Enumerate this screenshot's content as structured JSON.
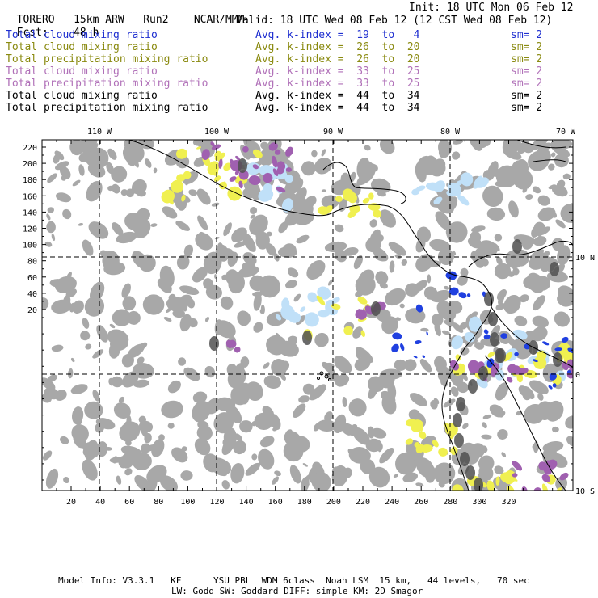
{
  "header": {
    "model": "TORERO",
    "resolution": "15km ARW",
    "run": "Run2",
    "center": "NCAR/MMM",
    "init": "Init: 18 UTC Mon 06 Feb 12",
    "fcst_label": "Fcst:",
    "fcst_value": "48 h",
    "valid": "Valid: 18 UTC Wed 08 Feb 12 (12 CST Wed 08 Feb 12)"
  },
  "fields": [
    {
      "name": "Total cloud mixing ratio",
      "kindex": "Avg. k-index =  19  to   4",
      "sm": "sm= 2",
      "color": "#1f2fd0"
    },
    {
      "name": "Total cloud mixing ratio",
      "kindex": "Avg. k-index =  26  to  20",
      "sm": "sm= 2",
      "color": "#8a8a10"
    },
    {
      "name": "Total precipitation mixing ratio",
      "kindex": "Avg. k-index =  26  to  20",
      "sm": "sm= 2",
      "color": "#8a8a10"
    },
    {
      "name": "Total cloud mixing ratio",
      "kindex": "Avg. k-index =  33  to  25",
      "sm": "sm= 2",
      "color": "#b070b8"
    },
    {
      "name": "Total precipitation mixing ratio",
      "kindex": "Avg. k-index =  33  to  25",
      "sm": "sm= 2",
      "color": "#b070b8"
    },
    {
      "name": "Total cloud mixing ratio",
      "kindex": "Avg. k-index =  44  to  34",
      "sm": "sm= 2",
      "color": "#000000"
    },
    {
      "name": "Total precipitation mixing ratio",
      "kindex": "Avg. k-index =  44  to  34",
      "sm": "sm= 2",
      "color": "#000000"
    }
  ],
  "map": {
    "top_lon_labels": [
      "110 W",
      "100 W",
      "90 W",
      "80 W",
      "70 W"
    ],
    "right_lat_labels": [
      "10 N",
      "0",
      "10 S"
    ],
    "left_grid_labels": [
      "220",
      "200",
      "180",
      "160",
      "140",
      "120",
      "100",
      "80",
      "60",
      "40",
      "20"
    ],
    "bottom_grid_labels": [
      "20",
      "40",
      "60",
      "80",
      "100",
      "120",
      "140",
      "160",
      "180",
      "200",
      "220",
      "240",
      "260",
      "280",
      "300",
      "320"
    ],
    "colors": {
      "gray": "#a8a8a8",
      "darkgray": "#505050",
      "yellow": "#f0f050",
      "lightblue": "#c0e0f8",
      "blue": "#2040e0",
      "purple": "#a060b0",
      "coast": "#000000",
      "grid": "#000000"
    }
  },
  "footer": {
    "line1": "Model Info: V3.3.1   KF      YSU PBL  WDM 6class  Noah LSM  15 km,   44 levels,   70 sec",
    "line2": "LW: Godd SW: Goddard DIFF: simple KM: 2D Smagor"
  }
}
